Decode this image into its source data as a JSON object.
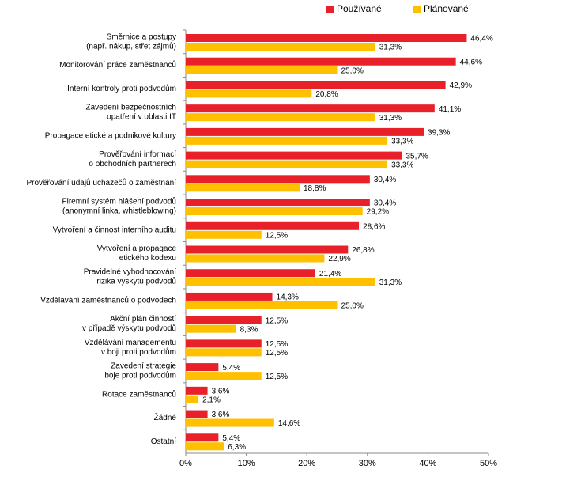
{
  "chart_data": {
    "type": "bar",
    "orientation": "horizontal",
    "categories": [
      [
        "Směrnice a postupy",
        "(např. nákup, střet zájmů)"
      ],
      [
        "Monitorování práce zaměstnanců"
      ],
      [
        "Interní kontroly proti podvodům"
      ],
      [
        "Zavedení bezpečnostních",
        "opatření v oblasti IT"
      ],
      [
        "Propagace etické a podnikové kultury"
      ],
      [
        "Prověřování informací",
        "o obchodních partnerech"
      ],
      [
        "Prověřování údajů uchazečů o zaměstnání"
      ],
      [
        "Firemní systém hlášení podvodů",
        "(anonymní linka, whistleblowing)"
      ],
      [
        "Vytvoření a činnost interního auditu"
      ],
      [
        "Vytvoření a propagace",
        "etického kodexu"
      ],
      [
        "Pravidelné vyhodnocování",
        "rizika výskytu podvodů"
      ],
      [
        "Vzdělávání zaměstnanců o podvodech"
      ],
      [
        "Akční plán činností",
        "v případě výskytu podvodů"
      ],
      [
        "Vzdělávání managementu",
        "v boji proti podvodům"
      ],
      [
        "Zavedení strategie",
        "boje proti podvodům"
      ],
      [
        "Rotace zaměstnanců"
      ],
      [
        "Žádné"
      ],
      [
        "Ostatní"
      ]
    ],
    "series": [
      {
        "name": "Používané",
        "color": "#e8202a",
        "values": [
          46.4,
          44.6,
          42.9,
          41.1,
          39.3,
          35.7,
          30.4,
          30.4,
          28.6,
          26.8,
          21.4,
          14.3,
          12.5,
          12.5,
          5.4,
          3.6,
          3.6,
          5.4
        ],
        "value_labels": [
          "46,4%",
          "44,6%",
          "42,9%",
          "41,1%",
          "39,3%",
          "35,7%",
          "30,4%",
          "30,4%",
          "28,6%",
          "26,8%",
          "21,4%",
          "14,3%",
          "12,5%",
          "12,5%",
          "5,4%",
          "3,6%",
          "3,6%",
          "5,4%"
        ]
      },
      {
        "name": "Plánované",
        "color": "#ffc000",
        "values": [
          31.3,
          25.0,
          20.8,
          31.3,
          33.3,
          33.3,
          18.8,
          29.2,
          12.5,
          22.9,
          31.3,
          25.0,
          8.3,
          12.5,
          12.5,
          2.1,
          14.6,
          6.3
        ],
        "value_labels": [
          "31,3%",
          "25,0%",
          "20,8%",
          "31,3%",
          "33,3%",
          "33,3%",
          "18,8%",
          "29,2%",
          "12,5%",
          "22,9%",
          "31,3%",
          "25,0%",
          "8,3%",
          "12,5%",
          "12,5%",
          "2,1%",
          "14,6%",
          "6,3%"
        ]
      }
    ],
    "xlim": [
      0,
      50
    ],
    "xticks": [
      {
        "value": 0,
        "label": "0%"
      },
      {
        "value": 10,
        "label": "10%"
      },
      {
        "value": 20,
        "label": "20%"
      },
      {
        "value": 30,
        "label": "30%"
      },
      {
        "value": 40,
        "label": "40%"
      },
      {
        "value": 50,
        "label": "50%"
      }
    ],
    "legend": "top-right"
  }
}
